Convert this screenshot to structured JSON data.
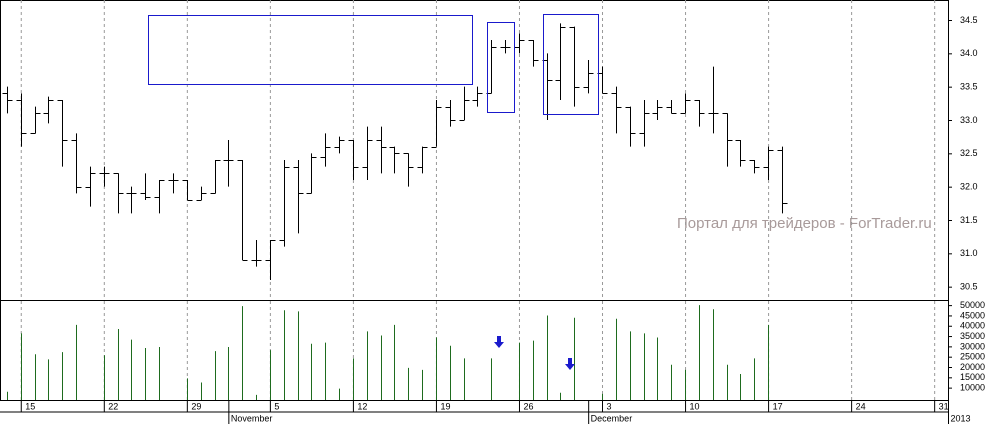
{
  "chart_data": {
    "type": "ohlc",
    "watermark": "Портал для трейдеров - ForTrader.ru",
    "x": [
      0,
      1,
      2,
      3,
      4,
      5,
      6,
      7,
      8,
      9,
      10,
      11,
      12,
      13,
      14,
      15,
      16,
      17,
      18,
      19,
      20,
      21,
      22,
      23,
      24,
      25,
      26,
      27,
      28,
      29,
      30,
      31,
      32,
      33,
      34,
      35,
      36,
      37,
      38,
      39,
      40,
      41,
      42,
      43,
      44,
      45,
      46,
      47,
      48,
      49,
      50,
      51,
      52,
      53,
      54,
      55,
      56
    ],
    "open": [
      33.4,
      33.3,
      32.8,
      33.1,
      33.3,
      32.7,
      32.0,
      32.2,
      32.2,
      31.9,
      31.9,
      31.85,
      32.1,
      32.1,
      31.8,
      31.9,
      32.4,
      32.4,
      30.9,
      30.9,
      31.2,
      32.3,
      31.9,
      32.45,
      32.6,
      32.7,
      32.3,
      32.7,
      32.6,
      32.5,
      32.3,
      32.6,
      33.2,
      33.0,
      33.3,
      33.4,
      34.1,
      34.1,
      34.2,
      33.9,
      33.6,
      34.4,
      33.5,
      33.7,
      33.4,
      33.2,
      32.8,
      33.1,
      33.2,
      33.1,
      33.3,
      33.1,
      33.1,
      32.7,
      32.4,
      32.3,
      32.55
    ],
    "high": [
      33.5,
      33.4,
      33.2,
      33.35,
      33.3,
      32.8,
      32.3,
      32.3,
      32.2,
      32.0,
      32.2,
      32.1,
      32.2,
      32.1,
      32.0,
      32.4,
      32.7,
      32.4,
      31.2,
      31.2,
      32.4,
      32.4,
      32.5,
      32.8,
      32.75,
      32.7,
      32.9,
      32.9,
      32.6,
      32.5,
      32.6,
      33.3,
      33.3,
      33.5,
      33.5,
      34.2,
      34.2,
      34.3,
      34.2,
      34.0,
      34.45,
      34.4,
      33.9,
      33.8,
      33.5,
      33.2,
      33.3,
      33.3,
      33.3,
      33.4,
      33.3,
      33.8,
      33.1,
      32.7,
      32.4,
      32.6,
      32.6
    ],
    "low": [
      33.1,
      32.6,
      32.8,
      32.95,
      32.3,
      31.9,
      31.7,
      32.0,
      31.6,
      31.6,
      31.8,
      31.6,
      31.9,
      31.8,
      31.8,
      31.9,
      32.0,
      30.9,
      30.8,
      30.6,
      31.1,
      31.3,
      31.9,
      32.3,
      32.5,
      32.1,
      32.1,
      32.2,
      32.2,
      32.0,
      32.2,
      32.6,
      32.9,
      33.0,
      33.2,
      33.4,
      34.0,
      34.0,
      33.8,
      33.0,
      33.3,
      33.2,
      33.4,
      33.4,
      32.8,
      32.6,
      32.6,
      33.0,
      33.1,
      33.1,
      32.9,
      32.8,
      32.3,
      32.3,
      32.2,
      32.1,
      31.6
    ],
    "close": [
      33.3,
      32.8,
      33.1,
      33.3,
      32.7,
      32.0,
      32.2,
      32.2,
      31.9,
      31.9,
      31.85,
      32.1,
      32.1,
      31.8,
      31.9,
      32.4,
      32.4,
      30.9,
      30.9,
      31.2,
      32.3,
      31.9,
      32.45,
      32.6,
      32.7,
      32.3,
      32.7,
      32.6,
      32.5,
      32.3,
      32.6,
      33.2,
      33.0,
      33.3,
      33.4,
      34.1,
      34.1,
      34.2,
      33.9,
      33.6,
      34.4,
      33.5,
      33.7,
      33.4,
      33.2,
      32.8,
      33.1,
      33.2,
      33.1,
      33.3,
      33.1,
      33.1,
      32.7,
      32.4,
      32.3,
      32.55,
      31.75
    ],
    "volume": [
      8000,
      36300,
      26200,
      23700,
      27200,
      40400,
      null,
      25700,
      38400,
      33300,
      29200,
      29700,
      null,
      14500,
      12500,
      27700,
      29700,
      49500,
      6500,
      28200,
      47500,
      47000,
      31300,
      31800,
      9500,
      24200,
      37300,
      35300,
      40400,
      19600,
      18600,
      34300,
      30300,
      24200,
      null,
      24200,
      null,
      31800,
      32800,
      45000,
      7500,
      43900,
      null,
      7000,
      43400,
      37300,
      36300,
      34300,
      21100,
      18600,
      50000,
      48000,
      21100,
      16600,
      24200,
      40400,
      null
    ],
    "color": "#000000",
    "volume_color": "#1e6b1e",
    "xlim": [
      -0.5,
      68
    ],
    "xticks": [
      {
        "value": 1,
        "label": "15"
      },
      {
        "value": 7,
        "label": "22"
      },
      {
        "value": 13,
        "label": "29"
      },
      {
        "value": 19,
        "label": "5"
      },
      {
        "value": 25,
        "label": "12"
      },
      {
        "value": 31,
        "label": "19"
      },
      {
        "value": 37,
        "label": "26"
      },
      {
        "value": 43,
        "label": "3"
      },
      {
        "value": 49,
        "label": "10"
      },
      {
        "value": 55,
        "label": "17"
      },
      {
        "value": 61,
        "label": "24"
      },
      {
        "value": 67,
        "label": "31"
      }
    ],
    "month_ticks": [
      {
        "value": 16,
        "label": "November"
      },
      {
        "value": 42,
        "label": "December"
      },
      {
        "value": 68,
        "label": "2013"
      }
    ],
    "ylim": [
      30.3,
      34.8
    ],
    "yticks": [
      30.5,
      {
        "value": 31,
        "label": "31.0"
      },
      31.5,
      {
        "value": 32,
        "label": "32.0"
      },
      32.5,
      {
        "value": 33,
        "label": "33.0"
      },
      33.5,
      {
        "value": 34,
        "label": "34.0"
      },
      34.5
    ],
    "y2lim": [
      4000,
      52000
    ],
    "y2ticks": [
      10000,
      15000,
      20000,
      25000,
      30000,
      35000,
      40000,
      45000,
      50000
    ],
    "grid": true
  }
}
